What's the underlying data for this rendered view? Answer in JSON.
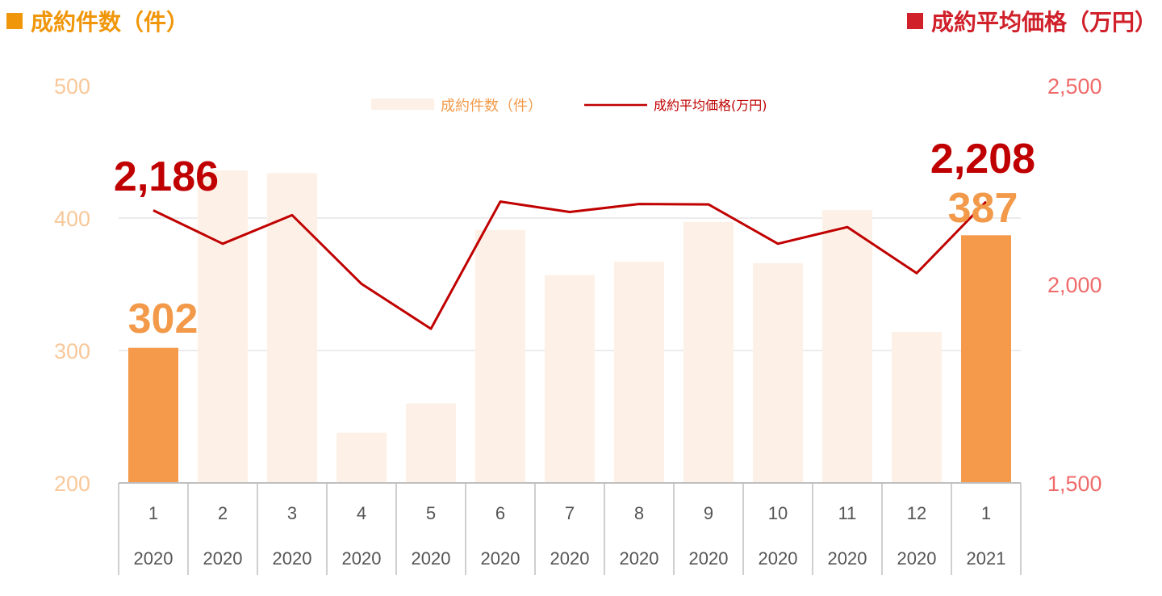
{
  "titles": {
    "left": "成約件数（件）",
    "right": "成約平均価格（万円）"
  },
  "colors": {
    "bar_highlight": "#f5994a",
    "bar_faded": "#fdf1e7",
    "line": "#c00000",
    "left_axis": "#f8c89a",
    "right_axis": "#f06a6a"
  },
  "chart_data": {
    "type": "bar+line",
    "categories": [
      {
        "month": "1",
        "year": "2020"
      },
      {
        "month": "2",
        "year": "2020"
      },
      {
        "month": "3",
        "year": "2020"
      },
      {
        "month": "4",
        "year": "2020"
      },
      {
        "month": "5",
        "year": "2020"
      },
      {
        "month": "6",
        "year": "2020"
      },
      {
        "month": "7",
        "year": "2020"
      },
      {
        "month": "8",
        "year": "2020"
      },
      {
        "month": "9",
        "year": "2020"
      },
      {
        "month": "10",
        "year": "2020"
      },
      {
        "month": "11",
        "year": "2020"
      },
      {
        "month": "12",
        "year": "2020"
      },
      {
        "month": "1",
        "year": "2021"
      }
    ],
    "series": [
      {
        "name": "成約件数（件）",
        "type": "bar",
        "axis": "left",
        "values": [
          302,
          436,
          434,
          238,
          260,
          391,
          357,
          367,
          397,
          366,
          406,
          314,
          387
        ],
        "highlighted": [
          0,
          12
        ]
      },
      {
        "name": "成約平均価格(万円)",
        "type": "line",
        "axis": "right",
        "values": [
          2186,
          2102,
          2174,
          2001,
          1888,
          2208,
          2182,
          2202,
          2201,
          2102,
          2144,
          2028,
          2208
        ]
      }
    ],
    "left_axis": {
      "min": 200,
      "max": 500,
      "ticks": [
        "500",
        "400",
        "300",
        "200"
      ]
    },
    "right_axis": {
      "min": 1500,
      "max": 2500,
      "ticks": [
        "2,500",
        "2,000",
        "1,500"
      ]
    },
    "data_labels": {
      "bar_first": "302",
      "bar_last": "387",
      "line_first": "2,186",
      "line_last": "2,208"
    },
    "legend_position": "top-center",
    "grid": "horizontal"
  }
}
